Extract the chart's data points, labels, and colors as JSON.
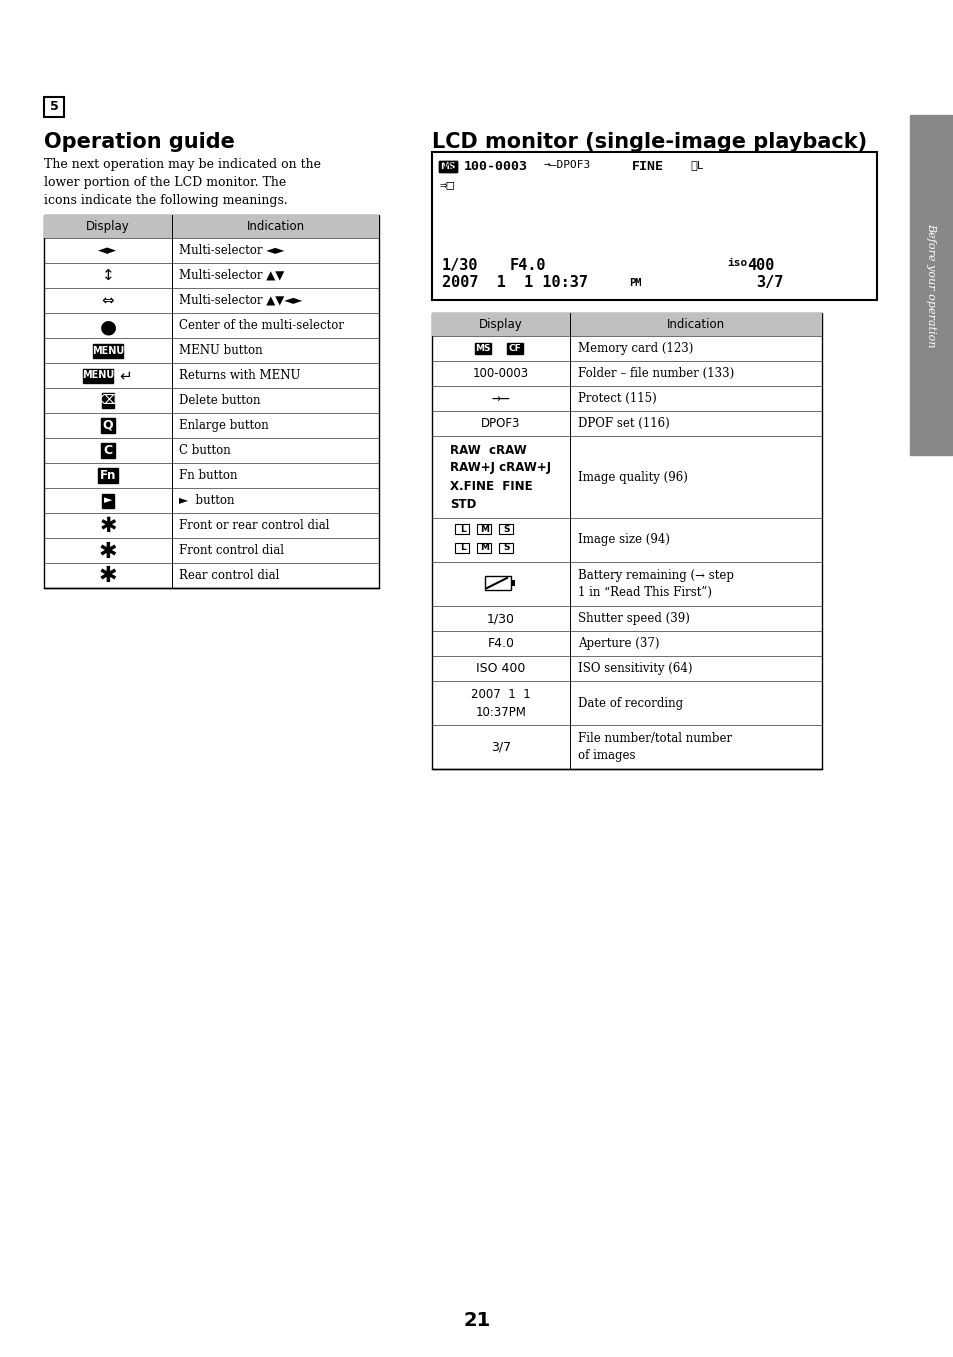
{
  "page_bg": "#ffffff",
  "page_num": "21",
  "sidebar_color": "#888888",
  "sidebar_text": "Before your operation",
  "step_num": "5",
  "op_title": "Operation guide",
  "op_body": "The next operation may be indicated on the\nlower portion of the LCD monitor. The\nicons indicate the following meanings.",
  "lcd_title": "LCD monitor (single-image playback)",
  "table_header_bg": "#c0c0c0"
}
